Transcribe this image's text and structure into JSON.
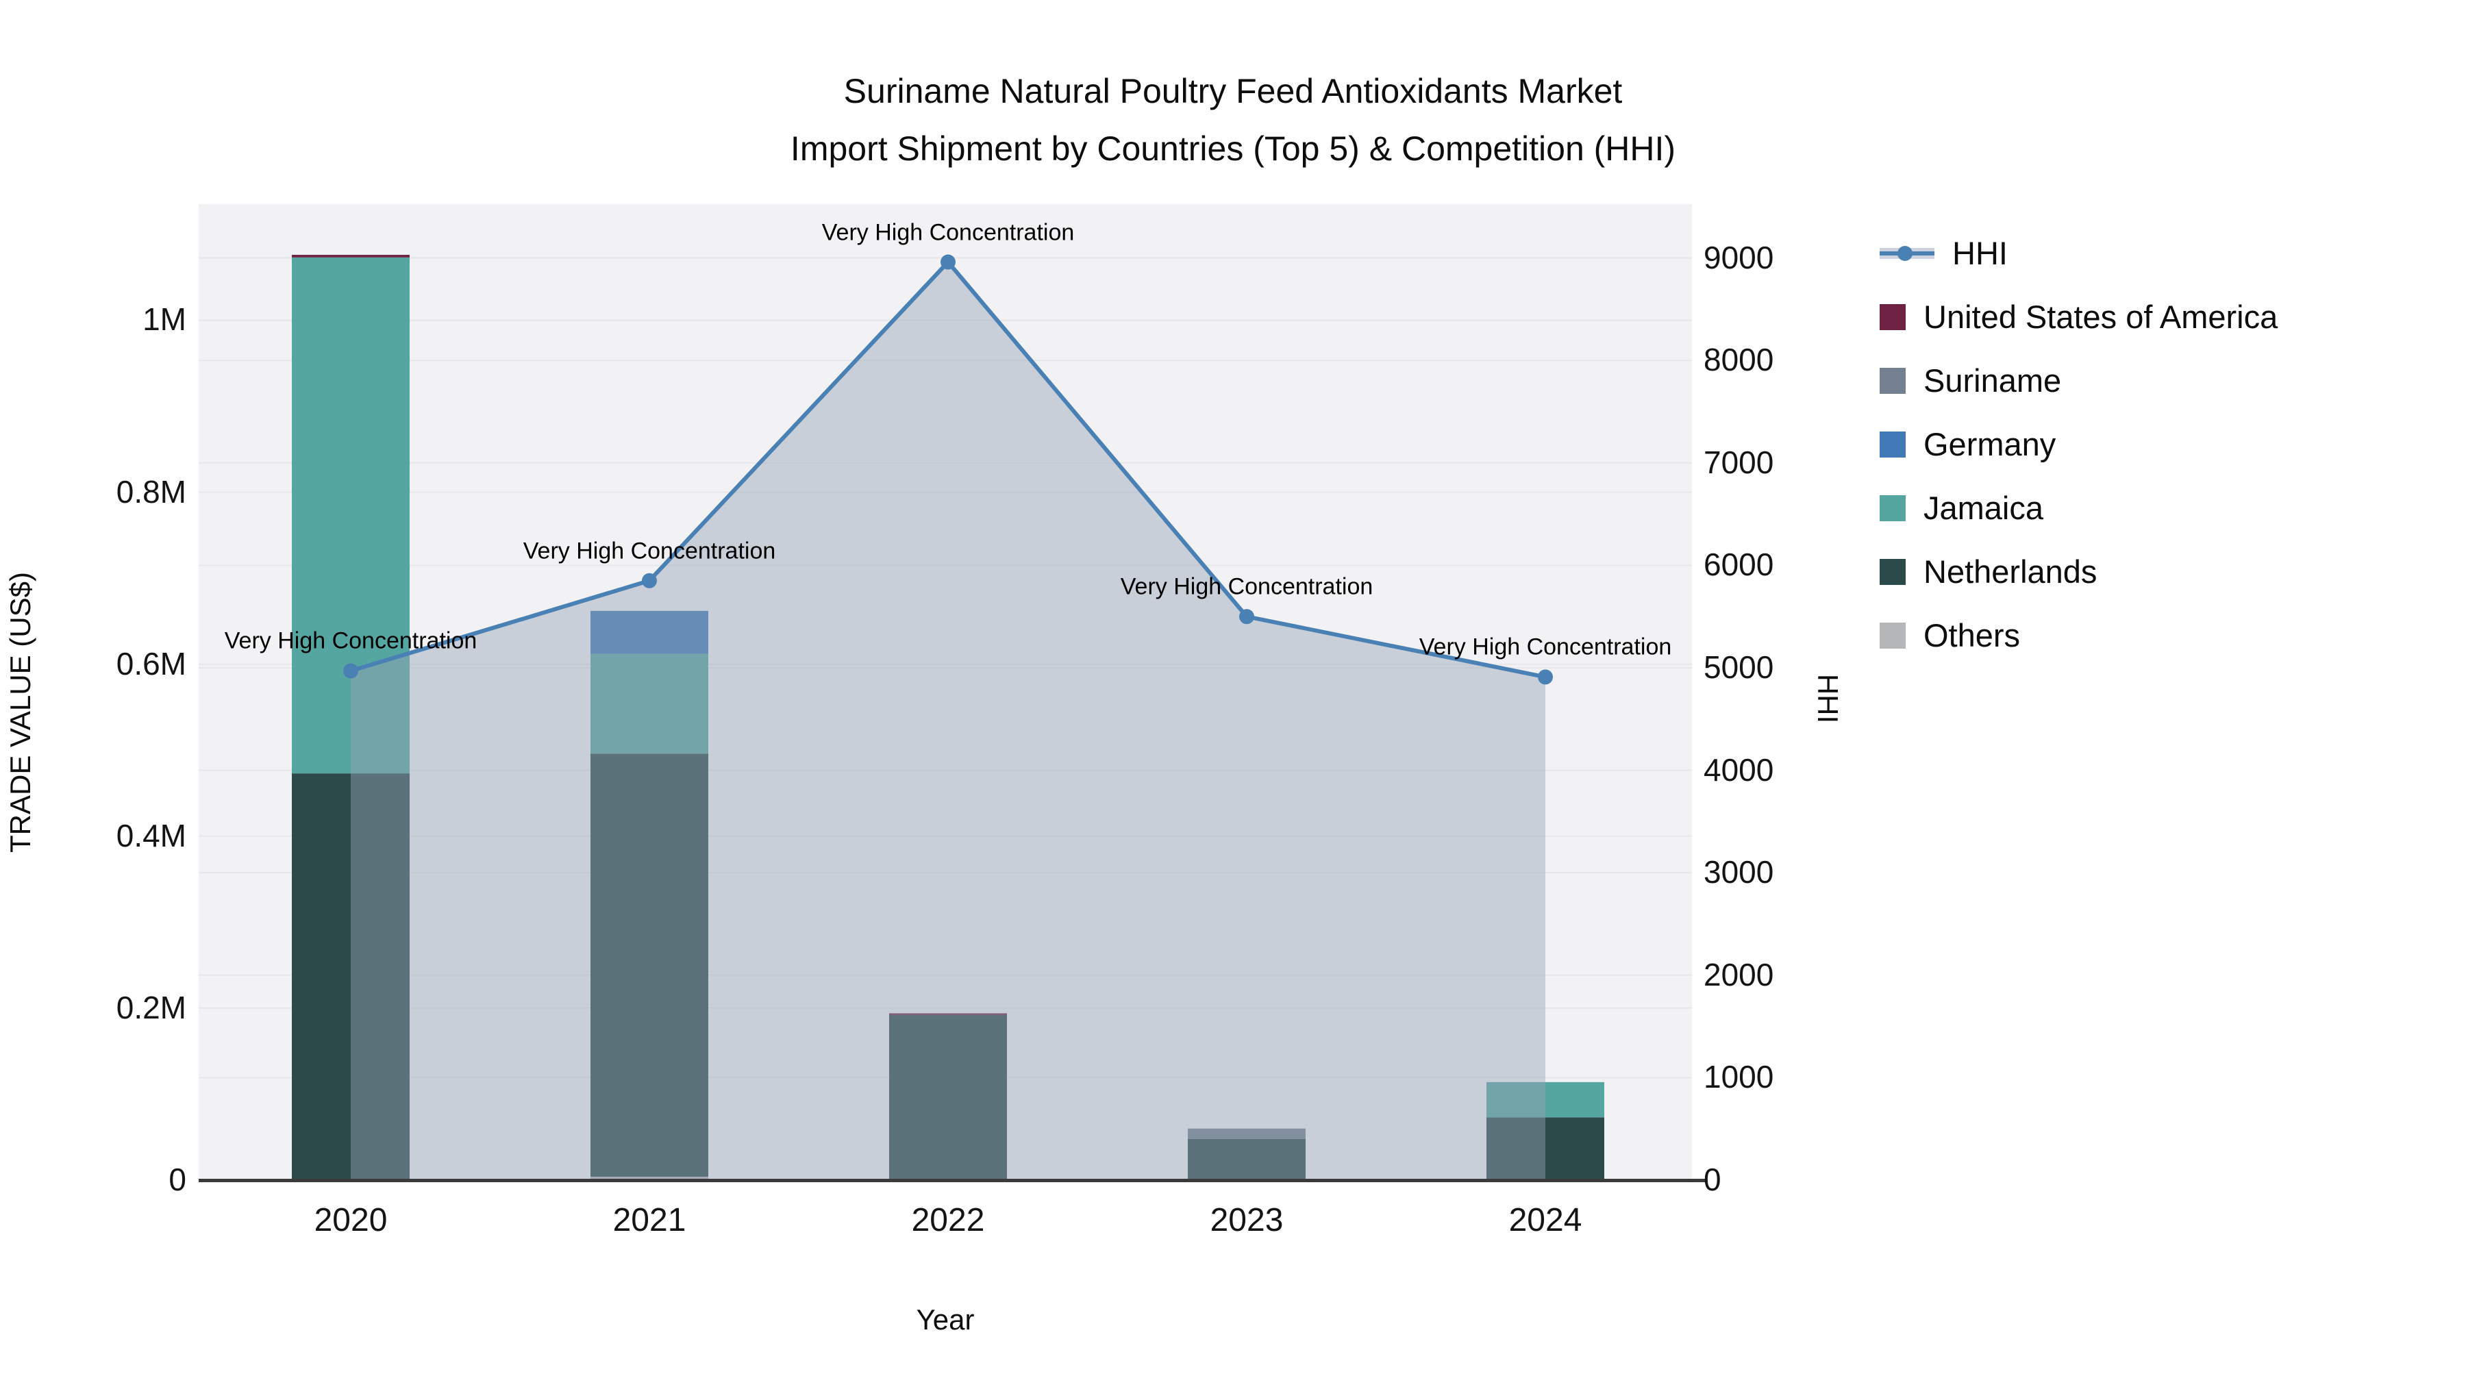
{
  "title": {
    "line1": "Suriname Natural Poultry Feed Antioxidants Market",
    "line2": "Import Shipment by Countries (Top 5) & Competition (HHI)"
  },
  "chart_data": {
    "type": "bar+line",
    "x_axis": {
      "label": "Year",
      "categories": [
        "2020",
        "2021",
        "2022",
        "2023",
        "2024"
      ]
    },
    "left_axis": {
      "label": "TRADE VALUE (US$)",
      "tick_labels": [
        "0",
        "0.2M",
        "0.4M",
        "0.6M",
        "0.8M",
        "1M"
      ],
      "tick_values": [
        0,
        200000,
        400000,
        600000,
        800000,
        1000000
      ],
      "range": [
        0,
        1135000
      ]
    },
    "right_axis": {
      "label": "HHI",
      "tick_values": [
        0,
        1000,
        2000,
        3000,
        4000,
        5000,
        6000,
        7000,
        8000,
        9000
      ],
      "range": [
        0,
        9525
      ]
    },
    "bar_series_bottom_to_top": [
      {
        "name": "Others",
        "color": "#b4b6b8",
        "values": [
          0,
          4000,
          0,
          0,
          0
        ]
      },
      {
        "name": "Netherlands",
        "color": "#2d4a4a",
        "values": [
          473000,
          492000,
          192000,
          48000,
          73000
        ]
      },
      {
        "name": "Jamaica",
        "color": "#55a5a0",
        "values": [
          600000,
          116000,
          0,
          0,
          41000
        ]
      },
      {
        "name": "Germany",
        "color": "#4079b5",
        "values": [
          0,
          50000,
          0,
          0,
          0
        ]
      },
      {
        "name": "Suriname",
        "color": "#74808f",
        "values": [
          0,
          0,
          0,
          12000,
          0
        ]
      },
      {
        "name": "United States of America",
        "color": "#6e2142",
        "values": [
          3000,
          0,
          2000,
          0,
          0
        ]
      }
    ],
    "line_series": {
      "name": "HHI",
      "color": "#4a81b5",
      "fill_color": "rgba(151,163,181,0.45)",
      "values": [
        4970,
        5850,
        8960,
        5500,
        4910
      ]
    },
    "annotations": [
      "Very High Concentration",
      "Very High Concentration",
      "Very High Concentration",
      "Very High Concentration",
      "Very High Concentration"
    ],
    "styles": {
      "plot_bg": "#f2f2f4",
      "grid": "#e6e7ea",
      "axis_line": "#3a3a3a"
    }
  },
  "legend": {
    "items": [
      {
        "label": "HHI",
        "type": "line",
        "color": "#4a81b5"
      },
      {
        "label": "United States of America",
        "type": "swatch",
        "color": "#6e2142"
      },
      {
        "label": "Suriname",
        "type": "swatch",
        "color": "#74808f"
      },
      {
        "label": "Germany",
        "type": "swatch",
        "color": "#4079b5"
      },
      {
        "label": "Jamaica",
        "type": "swatch",
        "color": "#55a5a0"
      },
      {
        "label": "Netherlands",
        "type": "swatch",
        "color": "#2d4a4a"
      },
      {
        "label": "Others",
        "type": "swatch",
        "color": "#b4b6b8"
      }
    ]
  }
}
